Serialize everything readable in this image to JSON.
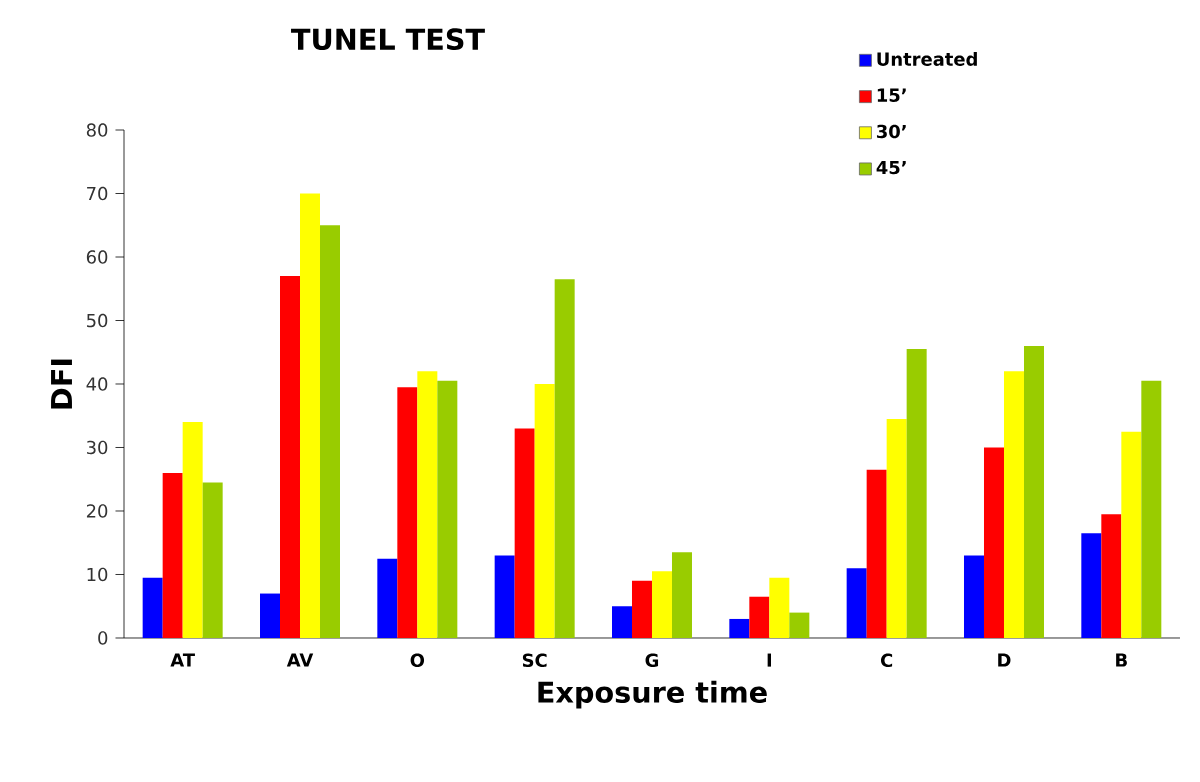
{
  "chart_data": {
    "type": "bar",
    "title": "TUNEL TEST",
    "xlabel": "Exposure time",
    "ylabel": "DFI",
    "categories": [
      "AT",
      "AV",
      "O",
      "SC",
      "G",
      "I",
      "C",
      "D",
      "B"
    ],
    "series": [
      {
        "name": "Untreated",
        "color": "#0000ff",
        "values": [
          9.5,
          7,
          12.5,
          13,
          5,
          3,
          11,
          13,
          16.5
        ]
      },
      {
        "name": "15’",
        "color": "#ff0000",
        "values": [
          26,
          57,
          39.5,
          33,
          9,
          6.5,
          26.5,
          30,
          19.5
        ]
      },
      {
        "name": "30’",
        "color": "#ffff00",
        "values": [
          34,
          70,
          42,
          40,
          10.5,
          9.5,
          34.5,
          42,
          32.5
        ]
      },
      {
        "name": "45’",
        "color": "#99cc00",
        "values": [
          24.5,
          65,
          40.5,
          56.5,
          13.5,
          4,
          45.5,
          46,
          40.5
        ]
      }
    ],
    "ylim": [
      0,
      80
    ],
    "yticks": [
      0,
      10,
      20,
      30,
      40,
      50,
      60,
      70,
      80
    ],
    "grid": false,
    "legend": "top right"
  }
}
